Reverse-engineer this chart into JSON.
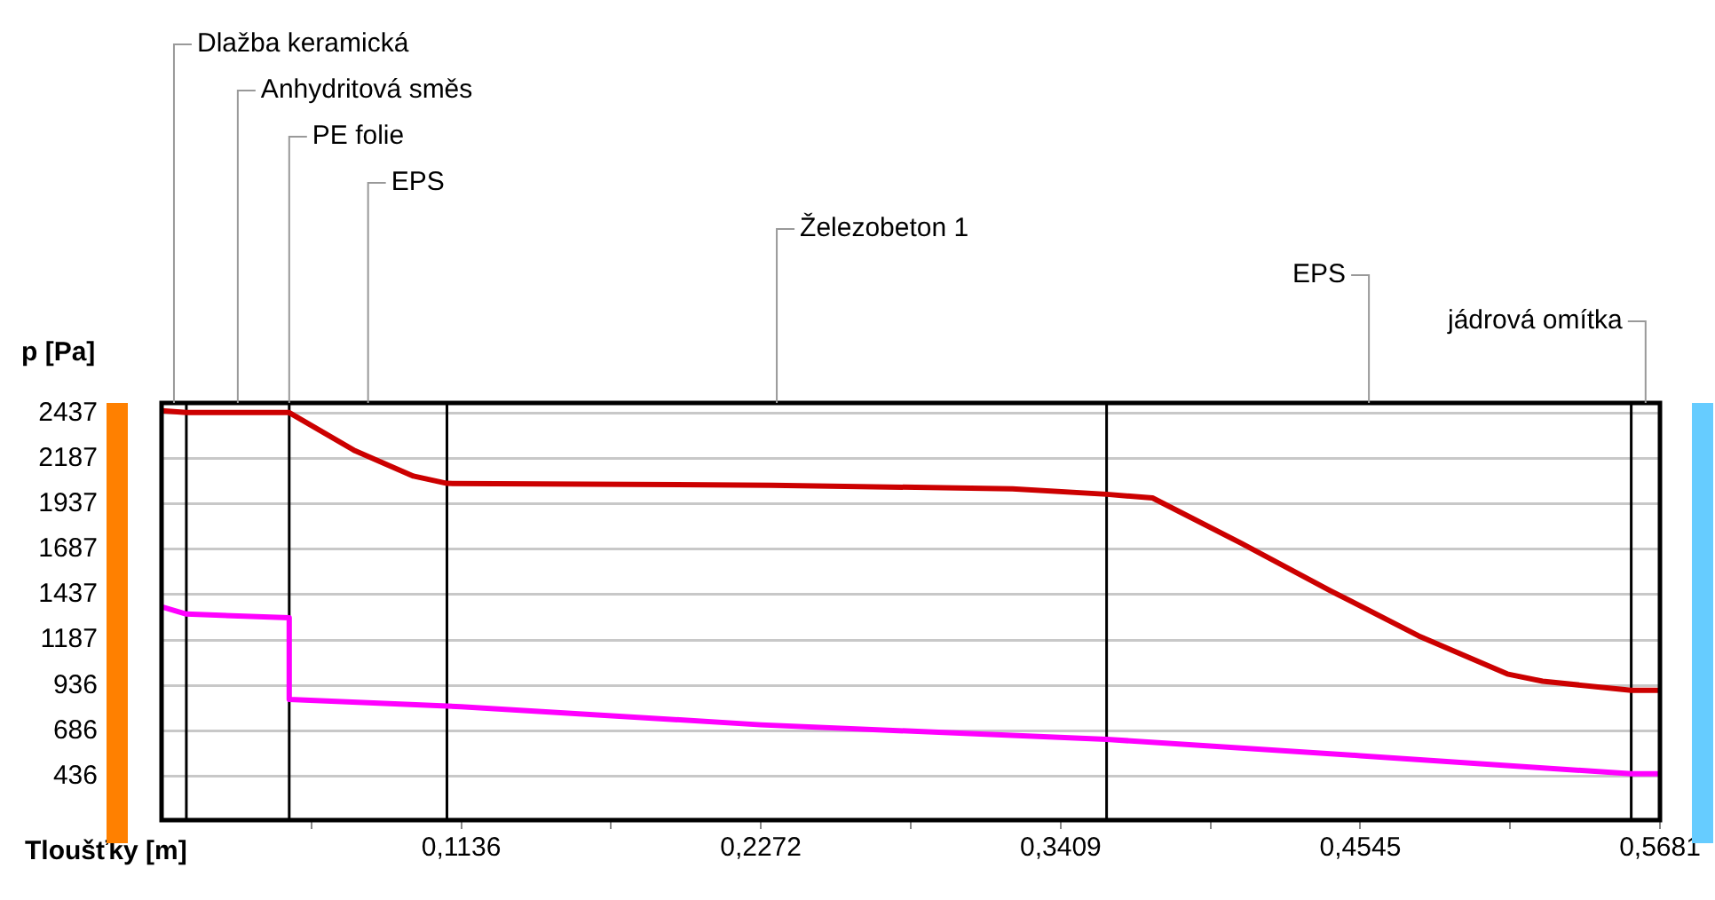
{
  "chart_data": {
    "type": "line",
    "ylabel": "p [Pa]",
    "xlabel": "Tloušťky [m]",
    "xlim": [
      0,
      0.5681
    ],
    "xticks": [
      {
        "value": 0.0568,
        "label": null
      },
      {
        "value": 0.1136,
        "label": "0,1136"
      },
      {
        "value": 0.1704,
        "label": null
      },
      {
        "value": 0.2272,
        "label": "0,2272"
      },
      {
        "value": 0.284,
        "label": null
      },
      {
        "value": 0.3409,
        "label": "0,3409"
      },
      {
        "value": 0.3977,
        "label": null
      },
      {
        "value": 0.4545,
        "label": "0,4545"
      },
      {
        "value": 0.5113,
        "label": null
      },
      {
        "value": 0.5681,
        "label": "0,5681"
      }
    ],
    "ylim": [
      195,
      2493
    ],
    "yticks": [
      2437,
      2187,
      1937,
      1687,
      1437,
      1187,
      936,
      686,
      436
    ],
    "grid": "y",
    "legend": false,
    "marker": "none",
    "line_style": "solid",
    "series": [
      {
        "color": "#cc0000",
        "x": [
          0,
          0.0094,
          0.0484,
          0.0733,
          0.0955,
          0.1082,
          0.2312,
          0.3226,
          0.3583,
          0.3757,
          0.4094,
          0.443,
          0.4766,
          0.5102,
          0.5236,
          0.5572,
          0.5681
        ],
        "values": [
          2450,
          2440,
          2440,
          2230,
          2090,
          2050,
          2040,
          2020,
          1990,
          1970,
          1720,
          1460,
          1210,
          1000,
          960,
          910,
          910
        ]
      },
      {
        "color": "#ff00ff",
        "x": [
          0,
          0.0094,
          0.0484,
          0.0484,
          0.1136,
          0.2272,
          0.3583,
          0.4545,
          0.5572,
          0.5681
        ],
        "values": [
          1370,
          1330,
          1310,
          860,
          820,
          720,
          640,
          550,
          450,
          450
        ]
      }
    ],
    "ref_lines": [
      {
        "axis": "x",
        "value": 0.0094,
        "color": "#000000"
      },
      {
        "axis": "x",
        "value": 0.0484,
        "color": "#000000"
      },
      {
        "axis": "x",
        "value": 0.1082,
        "color": "#000000"
      },
      {
        "axis": "x",
        "value": 0.3583,
        "color": "#000000"
      },
      {
        "axis": "x",
        "value": 0.5572,
        "color": "#000000"
      }
    ],
    "annotations": [
      "Dlažba keramická",
      "Anhydritová směs",
      {
        "text": "PE folie",
        "x": 0.0484,
        "y": 2493
      },
      "EPS",
      "Železobeton 1",
      "EPS",
      "jádrová omítka"
    ]
  }
}
